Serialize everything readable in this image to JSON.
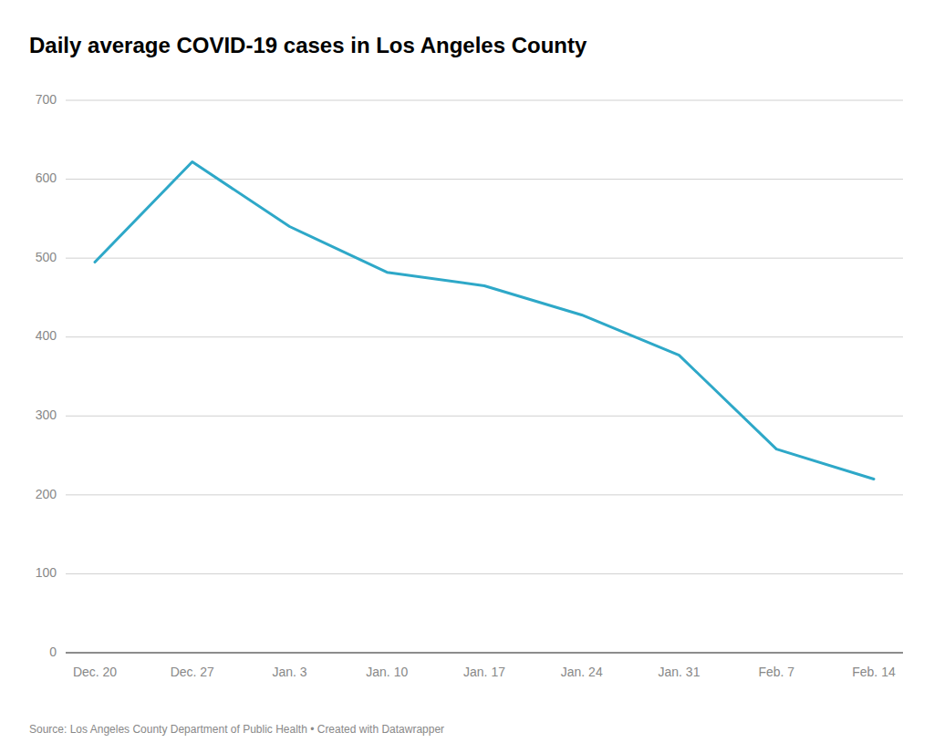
{
  "chart_data": {
    "type": "line",
    "title": "Daily average COVID-19 cases in Los Angeles County",
    "annotations": [
      "Source: Los Angeles County Department of Public Health • Created with Datawrapper"
    ],
    "categories": [
      "Dec. 20",
      "Dec. 27",
      "Jan. 3",
      "Jan. 10",
      "Jan. 17",
      "Jan. 24",
      "Jan. 31",
      "Feb. 7",
      "Feb. 14"
    ],
    "values": [
      495,
      622,
      540,
      482,
      465,
      428,
      377,
      258,
      220
    ],
    "color": "#2ea8c8",
    "ylim": [
      0,
      700
    ],
    "yticks": [
      0,
      100,
      200,
      300,
      400,
      500,
      600,
      700
    ],
    "grid": true
  }
}
